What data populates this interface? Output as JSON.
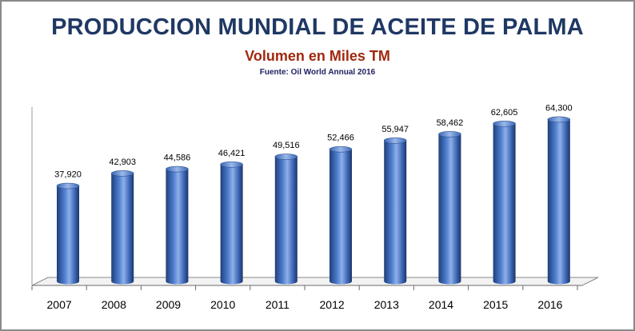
{
  "chart_data": {
    "type": "bar",
    "title": "PRODUCCION MUNDIAL DE ACEITE DE PALMA",
    "subtitle": "Volumen en Miles TM",
    "source": "Fuente: Oil World Annual 2016",
    "categories": [
      "2007",
      "2008",
      "2009",
      "2010",
      "2011",
      "2012",
      "2013",
      "2014",
      "2015",
      "2016"
    ],
    "values": [
      37920,
      42903,
      44586,
      46421,
      49516,
      52466,
      55947,
      58462,
      62605,
      64300
    ],
    "value_labels": [
      "37,920",
      "42,903",
      "44,586",
      "46,421",
      "49,516",
      "52,466",
      "55,947",
      "58,462",
      "62,605",
      "64,300"
    ],
    "xlabel": "",
    "ylabel": "",
    "ylim": [
      0,
      80000
    ],
    "grid": false,
    "legend": "none",
    "colors": {
      "bar": "#4472c4",
      "bar_dark": "#1f3f7a",
      "bar_light": "#8fb0e8",
      "title": "#1f3864",
      "subtitle": "#a0280f"
    }
  }
}
